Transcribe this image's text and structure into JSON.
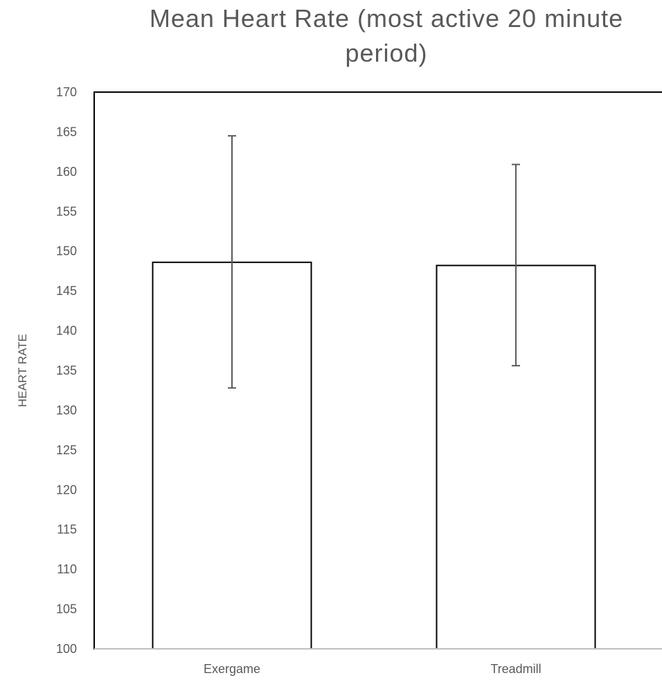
{
  "chart_data": {
    "type": "bar",
    "title": "Mean Heart Rate (most active 20 minute period)",
    "xlabel": "",
    "ylabel": "HEART RATE",
    "categories": [
      "Exergame",
      "Treadmill"
    ],
    "values": [
      148.6,
      148.2
    ],
    "error_low": [
      132.8,
      135.6
    ],
    "error_high": [
      164.5,
      160.9
    ],
    "ylim": [
      100,
      170
    ],
    "ytick_step": 5,
    "grid": false,
    "legend": "none",
    "colors": {
      "bar_fill": "#ffffff",
      "bar_stroke": "#000000",
      "error_bar": "#595959",
      "text": "#595959",
      "axis": "#bfbfbf"
    }
  }
}
